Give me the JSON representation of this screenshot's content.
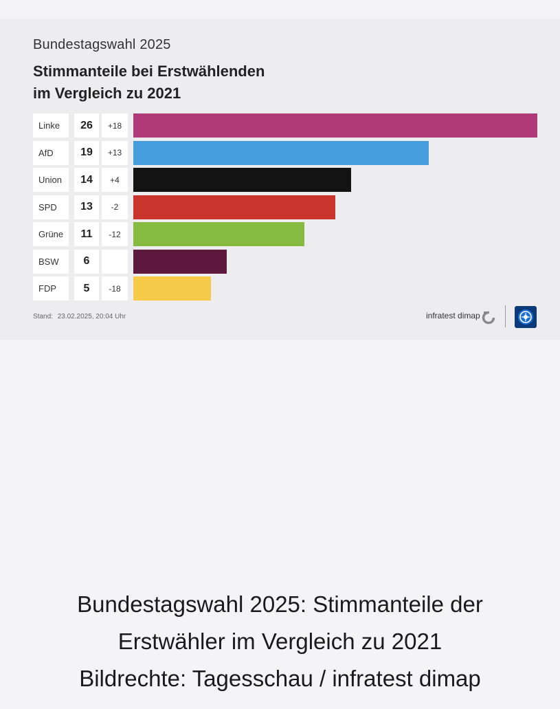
{
  "header": {
    "kicker": "Bundestagswahl 2025",
    "title_line1": "Stimmanteile bei Erstwählenden",
    "title_line2": "im Vergleich zu 2021"
  },
  "chart_data": {
    "type": "bar",
    "orientation": "horizontal",
    "title": "Stimmanteile bei Erstwählenden im Vergleich zu 2021",
    "categories": [
      "Linke",
      "AfD",
      "Union",
      "SPD",
      "Grüne",
      "BSW",
      "FDP"
    ],
    "values": [
      26,
      19,
      14,
      13,
      11,
      6,
      5
    ],
    "changes": [
      "+18",
      "+13",
      "+4",
      "-2",
      "-12",
      "",
      "-18"
    ],
    "colors": [
      "#b03a78",
      "#469ddc",
      "#131313",
      "#c9342c",
      "#87ba40",
      "#5e1a3e",
      "#f5ca48"
    ],
    "xlim": [
      0,
      26
    ],
    "unit": "%"
  },
  "footer": {
    "stand_label": "Stand:",
    "stand_value": "23.02.2025, 20:04 Uhr",
    "source_brand": "infratest dimap",
    "source_icon": "infratest-dimap-icon",
    "logo_icon": "tagesschau-logo-icon"
  },
  "caption": {
    "line1": "Bundestagswahl 2025: Stimmanteile der",
    "line2": "Erstwähler im Vergleich zu 2021",
    "line3": "Bildrechte: Tagesschau / infratest dimap"
  }
}
